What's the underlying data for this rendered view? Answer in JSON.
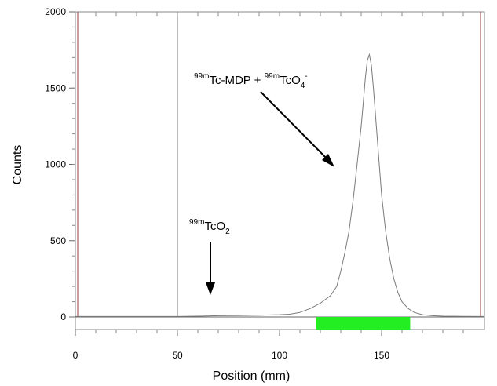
{
  "chart_data": {
    "type": "line",
    "xlabel": "Position (mm)",
    "ylabel": "Counts",
    "xlim": [
      0,
      200
    ],
    "ylim": [
      0,
      2000
    ],
    "x_ticks": [
      0,
      50,
      100,
      150
    ],
    "y_ticks": [
      0,
      500,
      1000,
      1500,
      2000
    ],
    "grid": false,
    "series": [
      {
        "x": [
          0,
          50,
          60,
          70,
          80,
          90,
          100,
          105,
          110,
          115,
          120,
          125,
          128,
          130,
          132,
          134,
          136,
          138,
          140,
          141,
          142,
          143,
          144,
          145,
          146,
          148,
          150,
          152,
          154,
          156,
          158,
          160,
          163,
          166,
          170,
          175,
          180,
          190,
          200
        ],
        "y": [
          3,
          3,
          5,
          8,
          10,
          12,
          15,
          18,
          30,
          55,
          90,
          140,
          200,
          300,
          420,
          560,
          760,
          1000,
          1250,
          1400,
          1560,
          1680,
          1720,
          1650,
          1500,
          1150,
          800,
          560,
          380,
          250,
          160,
          100,
          55,
          30,
          15,
          8,
          5,
          4,
          3
        ]
      }
    ],
    "annotations": [
      {
        "base": "Tc-MDP + ",
        "iso1": "99m",
        "iso2": "99m",
        "tail": "TcO",
        "sub": "4",
        "sup": "-"
      },
      {
        "iso": "99m",
        "base": "TcO",
        "sub": "2"
      }
    ],
    "colors": {
      "trace": "#7a7a7a",
      "boundary_lines": "#9b3a3a",
      "origin_line": "#7a7a7a",
      "peak_region": "#22ee22"
    },
    "region": [
      118,
      164
    ],
    "origin_marker": 50
  }
}
